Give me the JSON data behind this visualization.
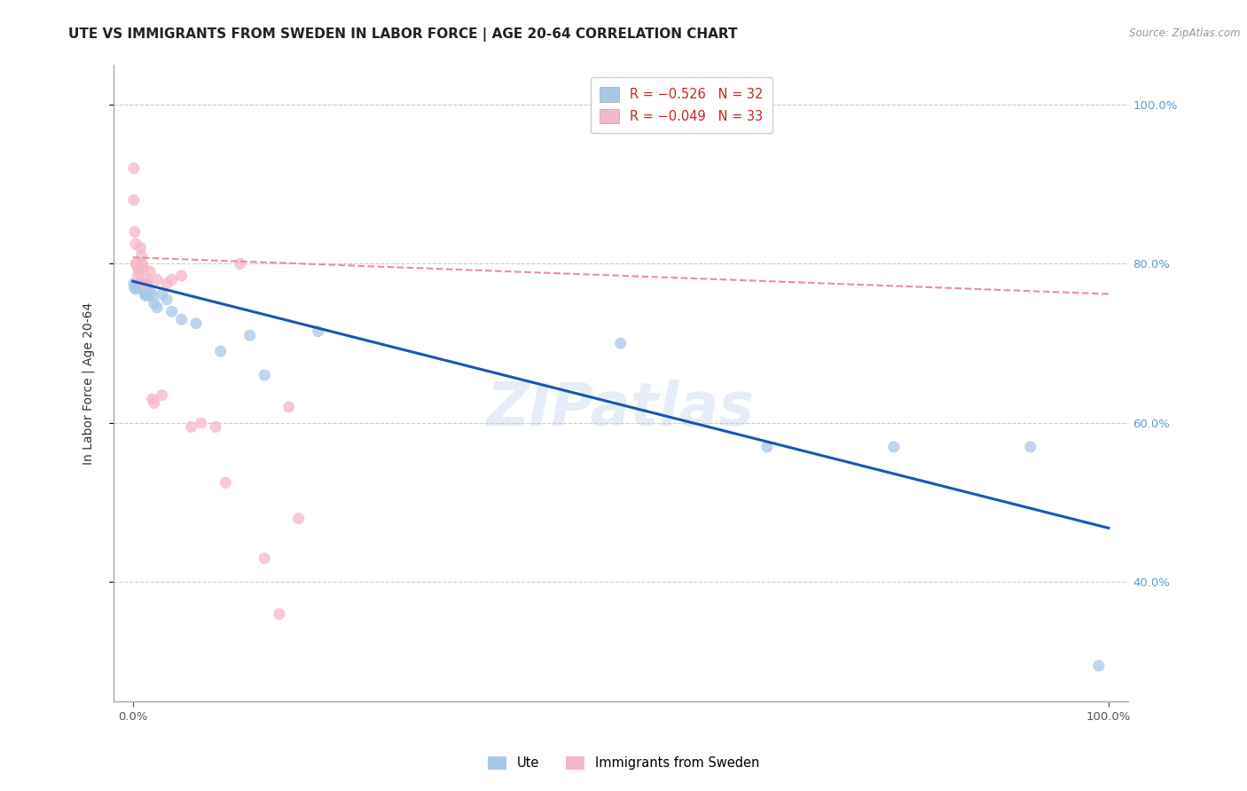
{
  "title": "UTE VS IMMIGRANTS FROM SWEDEN IN LABOR FORCE | AGE 20-64 CORRELATION CHART",
  "source": "Source: ZipAtlas.com",
  "ylabel": "In Labor Force | Age 20-64",
  "xlim": [
    -0.02,
    1.02
  ],
  "ylim": [
    0.25,
    1.05
  ],
  "x_ticks": [
    0.0,
    1.0
  ],
  "x_tick_labels": [
    "0.0%",
    "100.0%"
  ],
  "y_tick_labels_right": [
    "40.0%",
    "60.0%",
    "80.0%",
    "100.0%"
  ],
  "y_tick_vals_right": [
    0.4,
    0.6,
    0.8,
    1.0
  ],
  "watermark": "ZIPatlas",
  "legend_label_blue": "R = −0.526   N = 32",
  "legend_label_pink": "R = −0.049   N = 33",
  "legend_labels_bottom": [
    "Ute",
    "Immigrants from Sweden"
  ],
  "blue_scatter_color": "#a8c8e8",
  "pink_scatter_color": "#f4b8c8",
  "blue_line_color": "#1a56b0",
  "pink_line_color": "#e89099",
  "grid_color": "#cccccc",
  "background_color": "#ffffff",
  "right_tick_color": "#5b9bd5",
  "blue_points_x": [
    0.001,
    0.002,
    0.003,
    0.005,
    0.007,
    0.008,
    0.009,
    0.01,
    0.011,
    0.012,
    0.013,
    0.014,
    0.015,
    0.016,
    0.018,
    0.02,
    0.022,
    0.025,
    0.03,
    0.035,
    0.04,
    0.05,
    0.065,
    0.09,
    0.12,
    0.135,
    0.19,
    0.5,
    0.65,
    0.78,
    0.92,
    0.99
  ],
  "blue_points_y": [
    0.775,
    0.77,
    0.768,
    0.775,
    0.77,
    0.775,
    0.77,
    0.768,
    0.775,
    0.763,
    0.76,
    0.77,
    0.775,
    0.76,
    0.765,
    0.76,
    0.75,
    0.745,
    0.762,
    0.755,
    0.74,
    0.73,
    0.725,
    0.69,
    0.71,
    0.66,
    0.715,
    0.7,
    0.57,
    0.57,
    0.57,
    0.295
  ],
  "pink_points_x": [
    0.001,
    0.001,
    0.002,
    0.003,
    0.003,
    0.004,
    0.005,
    0.005,
    0.006,
    0.007,
    0.008,
    0.009,
    0.01,
    0.011,
    0.012,
    0.015,
    0.018,
    0.02,
    0.022,
    0.025,
    0.03,
    0.035,
    0.04,
    0.05,
    0.06,
    0.07,
    0.085,
    0.095,
    0.11,
    0.135,
    0.15,
    0.16,
    0.17
  ],
  "pink_points_y": [
    0.92,
    0.88,
    0.84,
    0.825,
    0.8,
    0.8,
    0.795,
    0.785,
    0.795,
    0.79,
    0.82,
    0.81,
    0.8,
    0.795,
    0.775,
    0.78,
    0.79,
    0.63,
    0.625,
    0.78,
    0.635,
    0.775,
    0.78,
    0.785,
    0.595,
    0.6,
    0.595,
    0.525,
    0.8,
    0.43,
    0.36,
    0.62,
    0.48
  ],
  "blue_trendline_x": [
    0.0,
    1.0
  ],
  "blue_trendline_y": [
    0.778,
    0.468
  ],
  "pink_trendline_x": [
    0.0,
    0.2
  ],
  "pink_trendline_y": [
    0.808,
    0.79
  ],
  "title_fontsize": 11,
  "axis_label_fontsize": 10,
  "tick_fontsize": 9.5,
  "scatter_size": 90,
  "scatter_alpha": 0.75
}
